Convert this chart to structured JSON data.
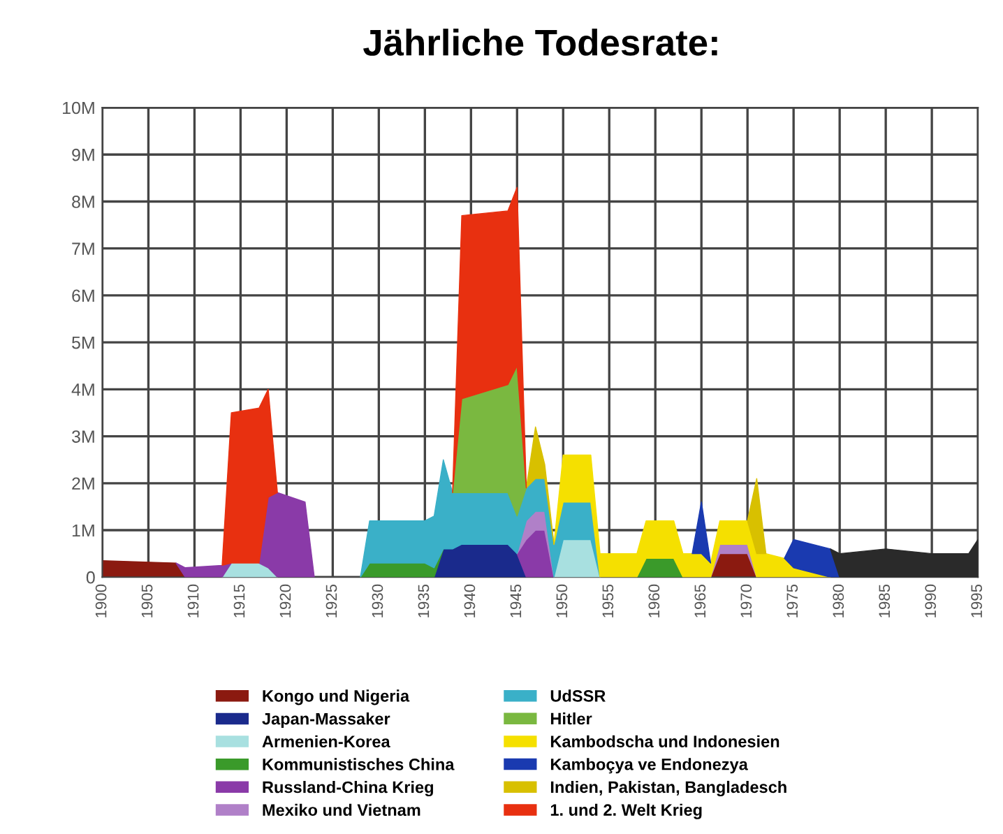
{
  "chart_data": {
    "type": "area",
    "stacked": true,
    "title": "Jährliche Todesrate:",
    "x": [
      1900,
      1908,
      1909,
      1913,
      1914,
      1917,
      1918,
      1919,
      1922,
      1923,
      1928,
      1929,
      1935,
      1936,
      1937,
      1938,
      1939,
      1944,
      1945,
      1946,
      1947,
      1948,
      1949,
      1950,
      1953,
      1954,
      1958,
      1959,
      1962,
      1963,
      1964,
      1965,
      1966,
      1967,
      1970,
      1971,
      1972,
      1974,
      1975,
      1979,
      1980,
      1985,
      1990,
      1994,
      1995
    ],
    "series": [
      {
        "name": "Kongo und Nigeria",
        "color": "#8b1a10",
        "values": [
          0.35,
          0.3,
          0,
          null,
          null,
          null,
          null,
          null,
          null,
          null,
          null,
          null,
          null,
          null,
          null,
          null,
          null,
          null,
          null,
          null,
          null,
          null,
          null,
          null,
          null,
          null,
          null,
          null,
          null,
          null,
          null,
          null,
          0,
          0.5,
          0.5,
          0,
          null,
          null,
          null,
          null,
          null,
          null,
          null,
          null,
          null
        ]
      },
      {
        "name": "Japan-Massaker",
        "color": "#1a2a8c",
        "values": [
          null,
          null,
          null,
          null,
          null,
          null,
          null,
          null,
          null,
          null,
          null,
          null,
          null,
          0,
          0.6,
          0.6,
          0.7,
          0.7,
          0.5,
          0,
          null,
          null,
          null,
          null,
          null,
          null,
          null,
          null,
          null,
          null,
          null,
          null,
          null,
          null,
          null,
          null,
          null,
          null,
          null,
          null,
          null,
          null,
          null,
          null,
          null
        ]
      },
      {
        "name": "Armenien-Korea",
        "color": "#a8e0e0",
        "values": [
          null,
          null,
          null,
          0,
          0.3,
          0.3,
          0.2,
          0,
          null,
          null,
          null,
          null,
          null,
          null,
          null,
          null,
          null,
          null,
          null,
          null,
          null,
          null,
          0,
          0.8,
          0.8,
          0,
          null,
          null,
          null,
          null,
          null,
          null,
          null,
          null,
          null,
          null,
          null,
          null,
          null,
          null,
          null,
          null,
          null,
          null,
          null
        ]
      },
      {
        "name": "Kommunistisches China",
        "color": "#3a9a2a",
        "values": [
          null,
          null,
          null,
          null,
          null,
          null,
          null,
          null,
          null,
          null,
          0,
          0.3,
          0.3,
          0.2,
          0,
          null,
          null,
          null,
          null,
          null,
          null,
          null,
          null,
          null,
          null,
          null,
          0,
          0.4,
          0.4,
          0,
          null,
          null,
          null,
          null,
          null,
          null,
          null,
          null,
          null,
          null,
          null,
          null,
          null,
          null,
          null
        ]
      },
      {
        "name": "Russland-China Krieg",
        "color": "#8a3aa8",
        "values": [
          null,
          0,
          0.2,
          0.25,
          0,
          0,
          1.5,
          1.8,
          1.6,
          0,
          null,
          null,
          null,
          null,
          null,
          null,
          null,
          null,
          0,
          0.8,
          1.0,
          1.0,
          0,
          null,
          null,
          null,
          null,
          null,
          null,
          null,
          null,
          null,
          null,
          null,
          null,
          null,
          null,
          null,
          null,
          null,
          null,
          null,
          null,
          null,
          null
        ]
      },
      {
        "name": "Mexiko und Vietnam",
        "color": "#b080c8",
        "values": [
          null,
          null,
          null,
          null,
          null,
          null,
          null,
          null,
          null,
          null,
          null,
          null,
          null,
          null,
          null,
          null,
          null,
          null,
          0,
          0.4,
          0.4,
          0.4,
          0,
          null,
          null,
          null,
          null,
          null,
          null,
          null,
          null,
          null,
          0,
          0.2,
          0.2,
          0,
          null,
          null,
          null,
          null,
          null,
          null,
          null,
          null,
          null
        ]
      },
      {
        "name": "UdSSR",
        "color": "#3ab0c8",
        "values": [
          null,
          null,
          null,
          null,
          null,
          null,
          null,
          null,
          null,
          null,
          0,
          0.9,
          0.9,
          1.1,
          1.9,
          1.2,
          1.1,
          1.1,
          0.8,
          0.7,
          0.7,
          0.7,
          0.7,
          0.8,
          0.8,
          0,
          null,
          null,
          null,
          null,
          null,
          null,
          null,
          null,
          null,
          null,
          null,
          null,
          null,
          null,
          null,
          null,
          null,
          null,
          null
        ]
      },
      {
        "name": "Hitler",
        "color": "#7ab840",
        "values": [
          null,
          null,
          null,
          null,
          null,
          null,
          null,
          null,
          null,
          null,
          null,
          null,
          null,
          null,
          null,
          0,
          2.0,
          2.3,
          3.2,
          0,
          null,
          null,
          null,
          null,
          null,
          null,
          null,
          null,
          null,
          null,
          null,
          null,
          null,
          null,
          null,
          null,
          null,
          null,
          null,
          null,
          null,
          null,
          null,
          null,
          null
        ]
      },
      {
        "name": "Kambodscha und Indonesien",
        "color": "#f5e000",
        "values": [
          null,
          null,
          null,
          null,
          null,
          null,
          null,
          null,
          null,
          null,
          null,
          null,
          null,
          null,
          null,
          null,
          null,
          null,
          null,
          null,
          null,
          null,
          0,
          1.0,
          1.0,
          0.5,
          0.5,
          0.8,
          0.8,
          0.5,
          0.5,
          0.5,
          0.3,
          0.5,
          0.5,
          0.5,
          0.5,
          0.4,
          0.2,
          0,
          null,
          null,
          null,
          null,
          null
        ]
      },
      {
        "name": "Kamboçya ve Endonezya",
        "color": "#1a3ab0",
        "values": [
          null,
          null,
          null,
          null,
          null,
          null,
          null,
          null,
          null,
          null,
          null,
          null,
          null,
          null,
          null,
          null,
          null,
          null,
          null,
          null,
          null,
          null,
          null,
          null,
          null,
          null,
          null,
          null,
          null,
          null,
          0,
          1.1,
          0,
          null,
          null,
          null,
          null,
          0,
          0.6,
          0.6,
          0,
          null,
          null,
          null,
          null
        ]
      },
      {
        "name": "Indien, Pakistan, Bangladesch",
        "color": "#d8c000",
        "values": [
          null,
          null,
          null,
          null,
          null,
          null,
          null,
          null,
          null,
          null,
          null,
          null,
          null,
          null,
          null,
          null,
          null,
          null,
          null,
          0,
          1.1,
          0.3,
          0,
          null,
          null,
          null,
          null,
          null,
          null,
          null,
          null,
          null,
          null,
          null,
          0,
          1.6,
          0,
          null,
          null,
          null,
          null,
          null,
          null,
          null,
          null
        ]
      },
      {
        "name": "1. und 2. Welt Krieg",
        "color": "#e83010",
        "values": [
          null,
          null,
          null,
          0,
          3.2,
          3.3,
          2.3,
          0,
          null,
          null,
          null,
          null,
          null,
          null,
          null,
          0,
          3.9,
          3.7,
          3.8,
          0,
          null,
          null,
          null,
          null,
          null,
          null,
          null,
          null,
          null,
          null,
          null,
          null,
          null,
          null,
          null,
          null,
          null,
          null,
          null,
          null,
          null,
          null,
          null,
          null,
          null
        ]
      },
      {
        "color": "#2a2a2a",
        "values": [
          null,
          null,
          null,
          null,
          null,
          null,
          null,
          null,
          null,
          null,
          null,
          null,
          null,
          null,
          null,
          null,
          null,
          null,
          null,
          null,
          null,
          null,
          null,
          null,
          null,
          null,
          null,
          null,
          null,
          null,
          null,
          null,
          null,
          null,
          null,
          null,
          null,
          null,
          null,
          0,
          0.5,
          0.6,
          0.5,
          0.5,
          0.8
        ]
      }
    ],
    "xlim": [
      1900,
      1995
    ],
    "xticks": [
      1900,
      1905,
      1910,
      1915,
      1920,
      1925,
      1930,
      1935,
      1940,
      1945,
      1950,
      1955,
      1960,
      1965,
      1970,
      1975,
      1980,
      1985,
      1990,
      1995
    ],
    "ylim": [
      0,
      10
    ],
    "yticks": [
      0,
      {
        "value": 1,
        "label": "1M"
      },
      {
        "value": 2,
        "label": "2M"
      },
      {
        "value": 3,
        "label": "3M"
      },
      {
        "value": 4,
        "label": "4M"
      },
      {
        "value": 5,
        "label": "5M"
      },
      {
        "value": 6,
        "label": "6M"
      },
      {
        "value": 7,
        "label": "7M"
      },
      {
        "value": 8,
        "label": "8M"
      },
      {
        "value": 9,
        "label": "9M"
      },
      {
        "value": 10,
        "label": "10M"
      }
    ],
    "grid": true,
    "legend": "bottom"
  }
}
